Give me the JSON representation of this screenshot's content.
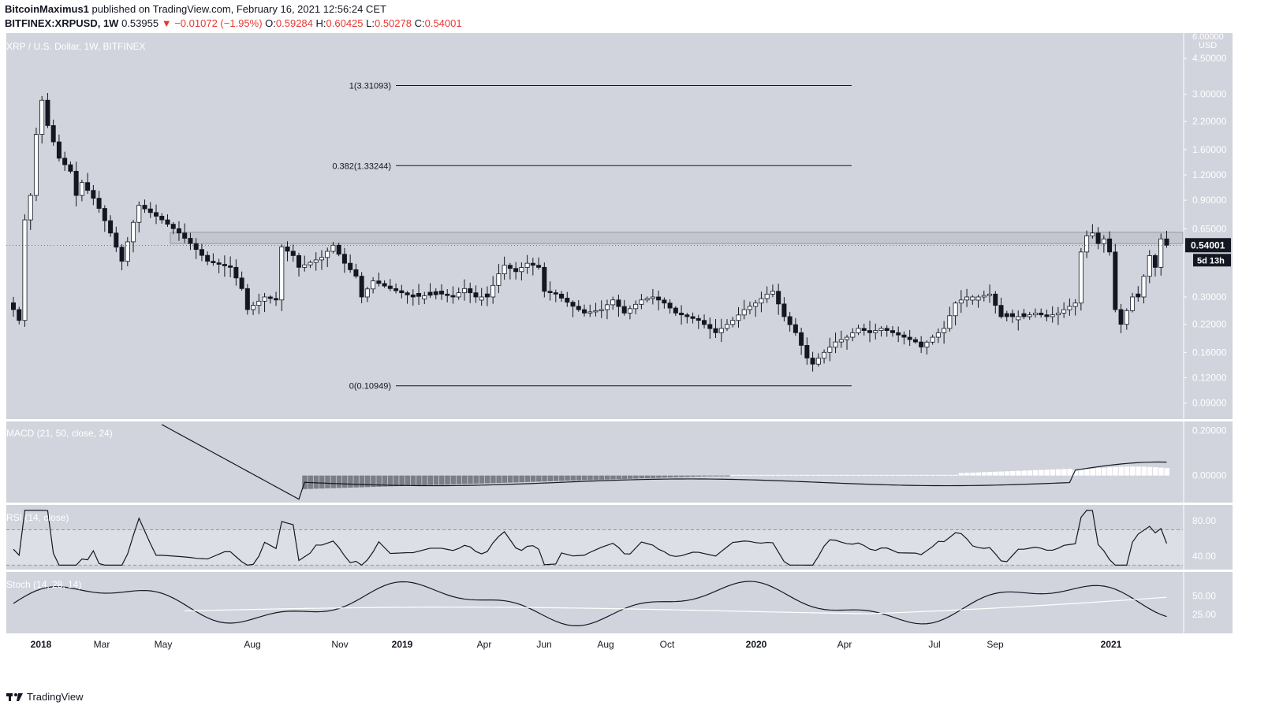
{
  "header": {
    "publisher": "BitcoinMaximus1",
    "published_text": "published on TradingView.com, February 16, 2021 12:56:24 CET",
    "symbol": "BITFINEX:XRPUSD, 1W",
    "last": "0.53955",
    "change": "−0.01072 (−1.95%)",
    "o_label": "O:",
    "o": "0.59284",
    "h_label": "H:",
    "h": "0.60425",
    "l_label": "L:",
    "l": "0.50278",
    "c_label": "C:",
    "c": "0.54001"
  },
  "colors": {
    "pane": "#d1d4dc",
    "down": "#131722",
    "up": "#ffffff",
    "price_tag": "#131722",
    "hist_light": "#ffffff",
    "hist_dark": "#7b7e86",
    "accent_red": "#e53935"
  },
  "footer": {
    "brand": "TradingView"
  },
  "chart_data": [
    {
      "type": "candlestick",
      "title": "XRP / U.S. Dollar, 1W, BITFINEX",
      "y_unit": "USD",
      "y_scale": "log",
      "ylim": [
        0.075,
        6.0
      ],
      "y_ticks": [
        "4.50000",
        "3.00000",
        "2.20000",
        "1.60000",
        "1.20000",
        "0.90000",
        "0.65000",
        "0.30000",
        "0.22000",
        "0.16000",
        "0.12000",
        "0.09000"
      ],
      "x_ticks": [
        "2018",
        "Mar",
        "May",
        "Aug",
        "Nov",
        "2019",
        "Apr",
        "Jun",
        "Aug",
        "Oct",
        "2020",
        "Apr",
        "Jul",
        "Sep",
        "2021"
      ],
      "last_price_label": "0.54001",
      "countdown_label": "5d 13h",
      "fib_levels": [
        {
          "label": "1(3.31093)",
          "value": 3.31093
        },
        {
          "label": "0.382(1.33244)",
          "value": 1.33244
        },
        {
          "label": "0(0.10949)",
          "value": 0.10949
        }
      ],
      "resistance_zone": [
        0.55,
        0.625
      ],
      "weekly_close_path": [
        [
          0.26,
          0
        ],
        [
          0.23,
          1
        ],
        [
          0.72,
          2
        ],
        [
          0.95,
          3
        ],
        [
          1.9,
          4
        ],
        [
          2.8,
          5
        ],
        [
          2.1,
          6
        ],
        [
          1.45,
          8
        ],
        [
          1.25,
          10
        ],
        [
          0.95,
          11
        ],
        [
          1.1,
          12
        ],
        [
          0.92,
          14
        ],
        [
          0.82,
          15
        ],
        [
          0.62,
          17
        ],
        [
          0.45,
          19
        ],
        [
          0.7,
          21
        ],
        [
          0.85,
          22
        ],
        [
          0.72,
          26
        ],
        [
          0.62,
          29
        ],
        [
          0.55,
          31
        ],
        [
          0.45,
          34
        ],
        [
          0.42,
          38
        ],
        [
          0.33,
          40
        ],
        [
          0.26,
          41
        ],
        [
          0.3,
          44
        ],
        [
          0.29,
          46
        ],
        [
          0.53,
          47
        ],
        [
          0.48,
          49
        ],
        [
          0.42,
          50
        ],
        [
          0.47,
          54
        ],
        [
          0.54,
          56
        ],
        [
          0.44,
          58
        ],
        [
          0.38,
          60
        ],
        [
          0.3,
          61
        ],
        [
          0.36,
          63
        ],
        [
          0.33,
          66
        ],
        [
          0.3,
          70
        ],
        [
          0.31,
          75
        ],
        [
          0.3,
          77
        ],
        [
          0.33,
          79
        ],
        [
          0.3,
          81
        ],
        [
          0.3,
          83
        ],
        [
          0.39,
          85
        ],
        [
          0.43,
          86
        ],
        [
          0.4,
          88
        ],
        [
          0.44,
          90
        ],
        [
          0.42,
          92
        ],
        [
          0.32,
          93
        ],
        [
          0.31,
          95
        ],
        [
          0.27,
          98
        ],
        [
          0.25,
          100
        ],
        [
          0.26,
          103
        ],
        [
          0.29,
          105
        ],
        [
          0.25,
          107
        ],
        [
          0.29,
          110
        ],
        [
          0.3,
          112
        ],
        [
          0.28,
          114
        ],
        [
          0.25,
          116
        ],
        [
          0.24,
          118
        ],
        [
          0.23,
          120
        ],
        [
          0.2,
          123
        ],
        [
          0.21,
          124
        ],
        [
          0.23,
          126
        ],
        [
          0.26,
          128
        ],
        [
          0.28,
          130
        ],
        [
          0.31,
          132
        ],
        [
          0.32,
          133
        ],
        [
          0.24,
          135
        ],
        [
          0.2,
          137
        ],
        [
          0.15,
          139
        ],
        [
          0.14,
          140
        ],
        [
          0.16,
          142
        ],
        [
          0.18,
          144
        ],
        [
          0.19,
          146
        ],
        [
          0.21,
          148
        ],
        [
          0.2,
          150
        ],
        [
          0.21,
          152
        ],
        [
          0.2,
          154
        ],
        [
          0.19,
          156
        ],
        [
          0.18,
          158
        ],
        [
          0.17,
          159
        ],
        [
          0.19,
          161
        ],
        [
          0.21,
          163
        ],
        [
          0.28,
          165
        ],
        [
          0.3,
          167
        ],
        [
          0.3,
          169
        ],
        [
          0.31,
          171
        ],
        [
          0.24,
          173
        ],
        [
          0.24,
          175
        ],
        [
          0.24,
          177
        ],
        [
          0.25,
          179
        ],
        [
          0.24,
          181
        ],
        [
          0.25,
          183
        ],
        [
          0.28,
          186
        ],
        [
          0.5,
          187
        ],
        [
          0.6,
          188
        ],
        [
          0.62,
          189
        ],
        [
          0.55,
          190
        ],
        [
          0.58,
          191
        ],
        [
          0.5,
          192
        ],
        [
          0.26,
          193
        ],
        [
          0.22,
          194
        ],
        [
          0.3,
          196
        ],
        [
          0.3,
          197
        ],
        [
          0.48,
          199
        ],
        [
          0.42,
          200
        ],
        [
          0.58,
          201
        ],
        [
          0.54,
          202
        ]
      ]
    },
    {
      "type": "line",
      "title": "MACD (21, 50, close, 24)",
      "y_ticks": [
        "0.20000",
        "0.00000"
      ],
      "ylim": [
        -0.12,
        0.24
      ]
    },
    {
      "type": "line",
      "title": "RSI (14, close)",
      "y_ticks": [
        "80.00",
        "40.00"
      ],
      "ylim": [
        25,
        98
      ],
      "bands": [
        70,
        30
      ]
    },
    {
      "type": "line",
      "title": "Stoch (14, 28, 14)",
      "y_ticks": [
        "50.00",
        "25.00"
      ],
      "ylim": [
        0,
        82
      ]
    }
  ]
}
